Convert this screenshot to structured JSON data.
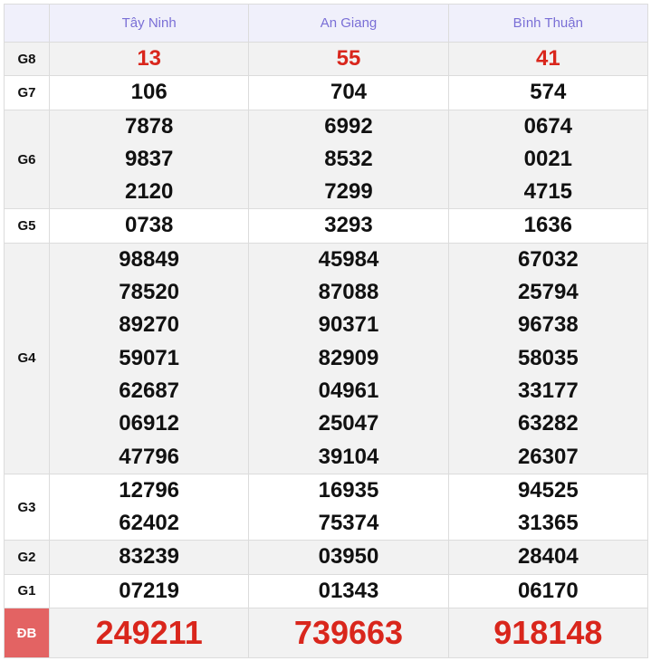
{
  "provinces": [
    "Tây Ninh",
    "An Giang",
    "Bình Thuận"
  ],
  "rows": [
    {
      "label": "G8",
      "red": true,
      "values": [
        [
          "13"
        ],
        [
          "55"
        ],
        [
          "41"
        ]
      ]
    },
    {
      "label": "G7",
      "values": [
        [
          "106"
        ],
        [
          "704"
        ],
        [
          "574"
        ]
      ]
    },
    {
      "label": "G6",
      "values": [
        [
          "7878",
          "9837",
          "2120"
        ],
        [
          "6992",
          "8532",
          "7299"
        ],
        [
          "0674",
          "0021",
          "4715"
        ]
      ]
    },
    {
      "label": "G5",
      "values": [
        [
          "0738"
        ],
        [
          "3293"
        ],
        [
          "1636"
        ]
      ]
    },
    {
      "label": "G4",
      "values": [
        [
          "98849",
          "78520",
          "89270",
          "59071",
          "62687",
          "06912",
          "47796"
        ],
        [
          "45984",
          "87088",
          "90371",
          "82909",
          "04961",
          "25047",
          "39104"
        ],
        [
          "67032",
          "25794",
          "96738",
          "58035",
          "33177",
          "63282",
          "26307"
        ]
      ]
    },
    {
      "label": "G3",
      "values": [
        [
          "12796",
          "62402"
        ],
        [
          "16935",
          "75374"
        ],
        [
          "94525",
          "31365"
        ]
      ]
    },
    {
      "label": "G2",
      "values": [
        [
          "83239"
        ],
        [
          "03950"
        ],
        [
          "28404"
        ]
      ]
    },
    {
      "label": "G1",
      "values": [
        [
          "07219"
        ],
        [
          "01343"
        ],
        [
          "06170"
        ]
      ]
    },
    {
      "label": "ĐB",
      "red": true,
      "special": true,
      "values": [
        [
          "249211"
        ],
        [
          "739663"
        ],
        [
          "918148"
        ]
      ]
    }
  ],
  "colors": {
    "header_text": "#7a6fd6",
    "red": "#d9261c",
    "special_label_bg": "#e36363"
  }
}
